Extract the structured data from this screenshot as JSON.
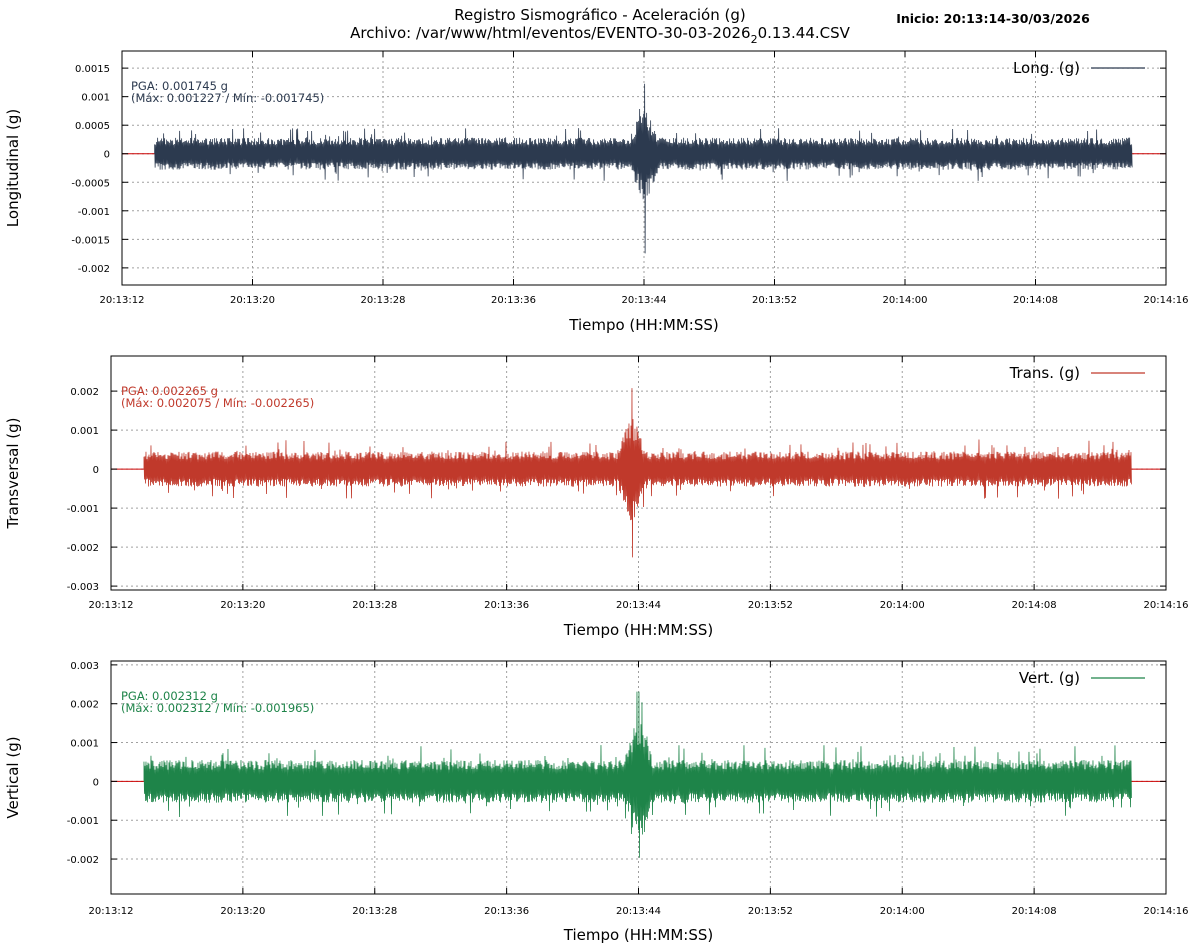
{
  "header": {
    "title": "Registro Sismográfico - Aceleración (g)",
    "file_prefix": "Archivo: /var/www/html/eventos/EVENTO-30-03-2026",
    "file_subscript": "2",
    "file_suffix": "0.13.44.CSV",
    "start_label": "Inicio: 20:13:14-30/03/2026"
  },
  "colors": {
    "zero_line": "#cc0000",
    "grid": "#a0a0a0"
  },
  "chart_data": [
    {
      "type": "line",
      "xlabel": "Tiempo (HH:MM:SS)",
      "ylabel": "Longitudinal (g)",
      "legend": "Long. (g)",
      "legend_position": "top-right",
      "color": "#2c3a4f",
      "pga_line": "PGA: 0.001745 g",
      "maxmin_line": "(Máx: 0.001227 / Mín: -0.001745)",
      "pga": 0.001745,
      "max": 0.001227,
      "min": -0.001745,
      "xlim": [
        "20:13:12",
        "20:14:16"
      ],
      "ylim": [
        -0.0023,
        0.0018
      ],
      "x_ticks": [
        "20:13:12",
        "20:13:20",
        "20:13:28",
        "20:13:36",
        "20:13:44",
        "20:13:52",
        "20:14:00",
        "20:14:08",
        "20:14:16"
      ],
      "y_ticks": [
        "0.0015",
        "0.001",
        "0.0005",
        "0",
        "-0.0005",
        "-0.001",
        "-0.0015",
        "-0.002"
      ],
      "y_tick_values": [
        0.0015,
        0.001,
        0.0005,
        0,
        -0.0005,
        -0.001,
        -0.0015,
        -0.002
      ],
      "signal_start": "20:13:14",
      "signal_end": "20:14:13.9",
      "peak_time": "20:13:44",
      "background_amplitude": 0.00028,
      "grid": true
    },
    {
      "type": "line",
      "xlabel": "Tiempo (HH:MM:SS)",
      "ylabel": "Transversal (g)",
      "legend": "Trans. (g)",
      "legend_position": "top-right",
      "color": "#c0392b",
      "pga_line": "PGA: 0.002265 g",
      "maxmin_line": "(Máx: 0.002075 / Mín: -0.002265)",
      "pga": 0.002265,
      "max": 0.002075,
      "min": -0.002265,
      "xlim": [
        "20:13:12",
        "20:14:16"
      ],
      "ylim": [
        -0.0031,
        0.0029
      ],
      "x_ticks": [
        "20:13:12",
        "20:13:20",
        "20:13:28",
        "20:13:36",
        "20:13:44",
        "20:13:52",
        "20:14:00",
        "20:14:08",
        "20:14:16"
      ],
      "y_ticks": [
        "0.002",
        "0.001",
        "0",
        "-0.001",
        "-0.002",
        "-0.003"
      ],
      "y_tick_values": [
        0.002,
        0.001,
        0,
        -0.001,
        -0.002,
        -0.003
      ],
      "signal_start": "20:13:14",
      "signal_end": "20:14:13.9",
      "peak_time": "20:13:43.6",
      "background_amplitude": 0.00045,
      "grid": true
    },
    {
      "type": "line",
      "xlabel": "Tiempo (HH:MM:SS)",
      "ylabel": "Vertical (g)",
      "legend": "Vert. (g)",
      "legend_position": "top-right",
      "color": "#1e8449",
      "pga_line": "PGA: 0.002312 g",
      "maxmin_line": "(Máx: 0.002312 / Mín: -0.001965)",
      "pga": 0.002312,
      "max": 0.002312,
      "min": -0.001965,
      "xlim": [
        "20:13:12",
        "20:14:16"
      ],
      "ylim": [
        -0.0029,
        0.0031
      ],
      "x_ticks": [
        "20:13:12",
        "20:13:20",
        "20:13:28",
        "20:13:36",
        "20:13:44",
        "20:13:52",
        "20:14:00",
        "20:14:08",
        "20:14:16"
      ],
      "y_ticks": [
        "0.003",
        "0.002",
        "0.001",
        "0",
        "-0.001",
        "-0.002"
      ],
      "y_tick_values": [
        0.003,
        0.002,
        0.001,
        0,
        -0.001,
        -0.002
      ],
      "signal_start": "20:13:14",
      "signal_end": "20:14:13.9",
      "peak_time": "20:13:44",
      "background_amplitude": 0.00055,
      "grid": true
    }
  ]
}
